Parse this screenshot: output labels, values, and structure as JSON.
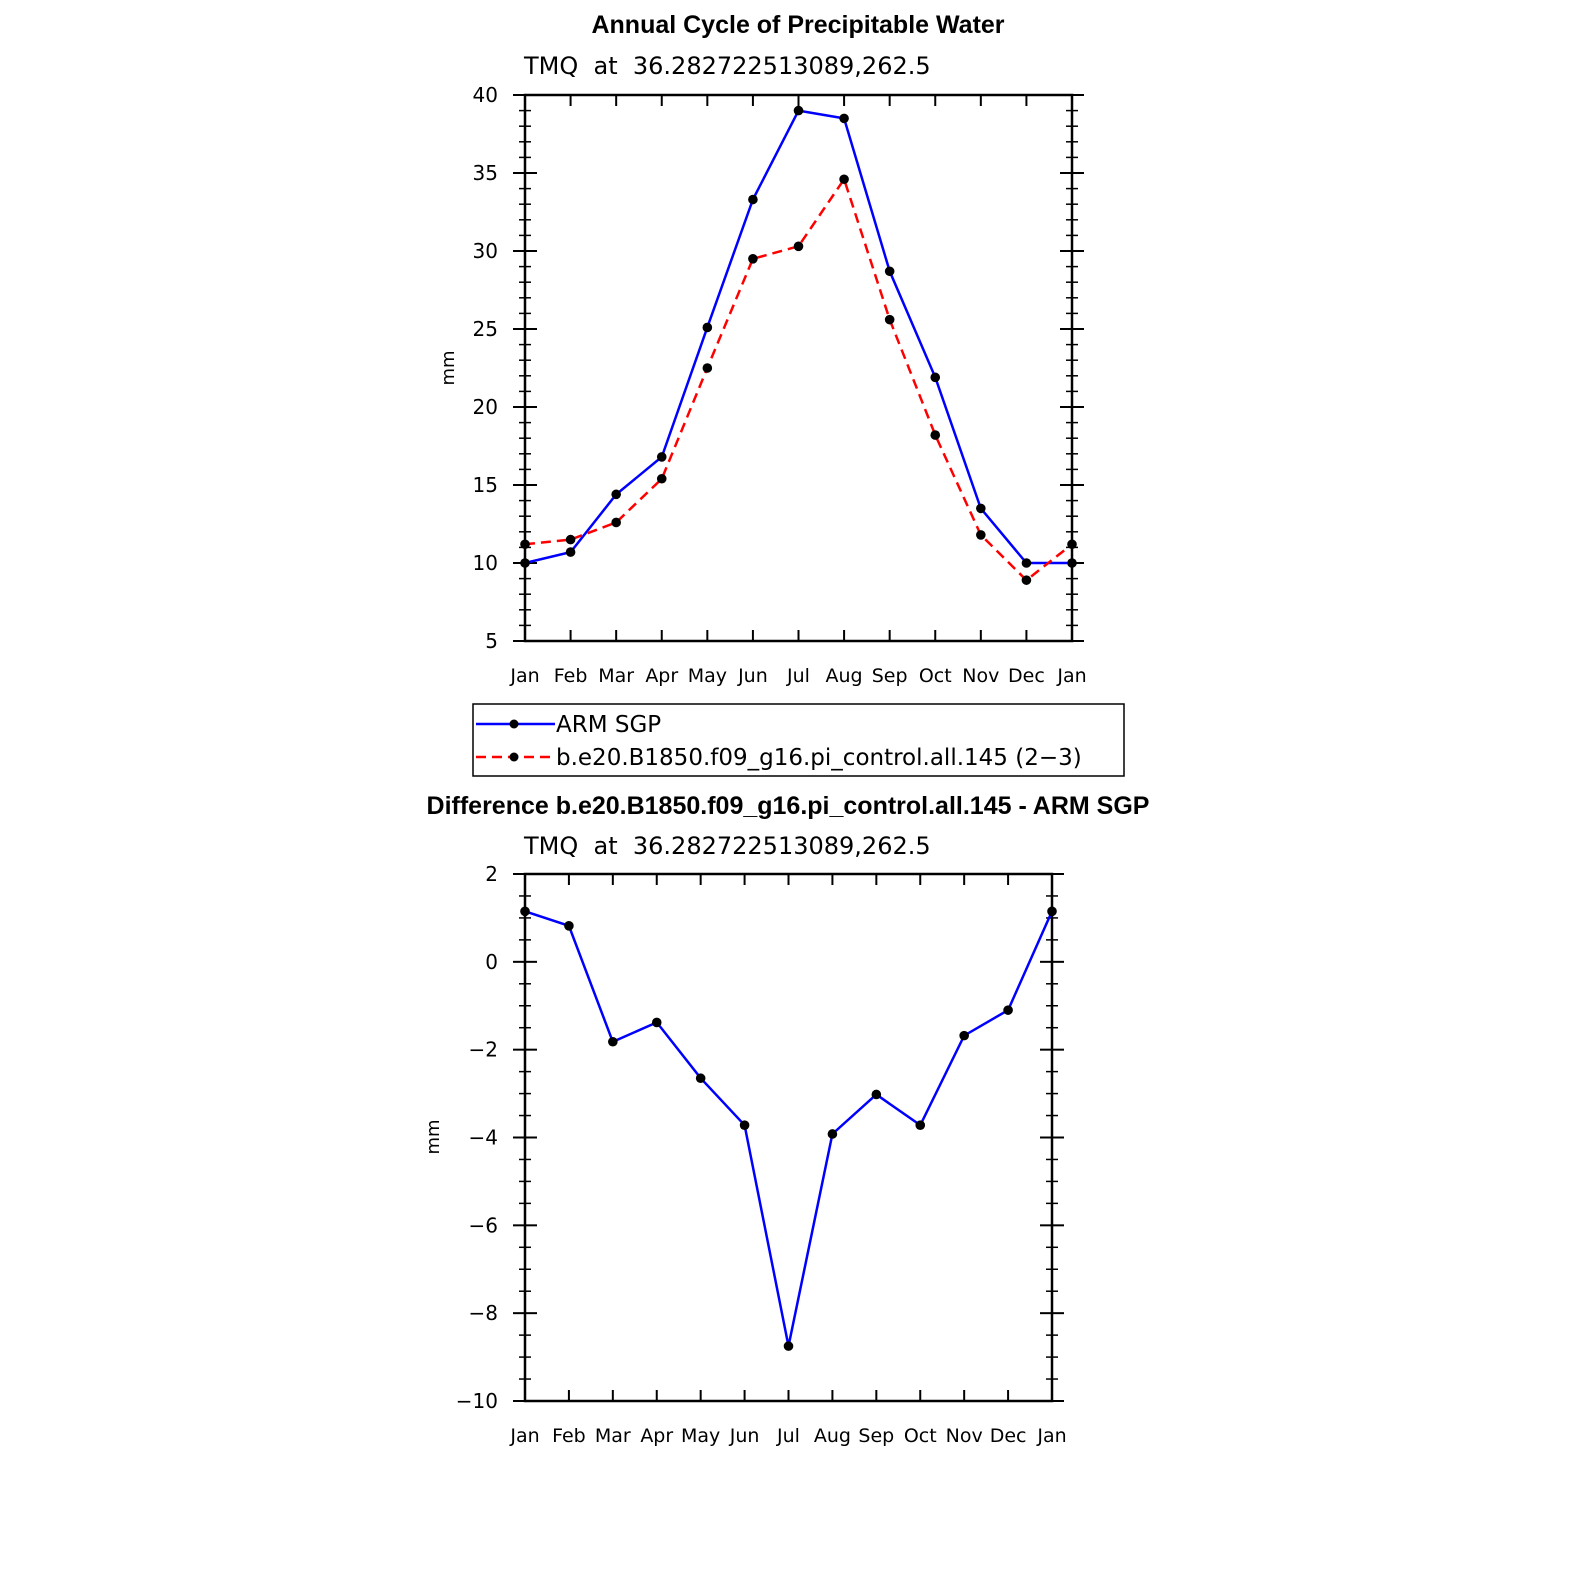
{
  "chart_data": [
    {
      "type": "line",
      "title": "Annual Cycle of Precipitable Water",
      "subtitle": "TMQ  at  36.282722513089,262.5",
      "xlabel": "",
      "ylabel": "mm",
      "categories": [
        "Jan",
        "Feb",
        "Mar",
        "Apr",
        "May",
        "Jun",
        "Jul",
        "Aug",
        "Sep",
        "Oct",
        "Nov",
        "Dec",
        "Jan"
      ],
      "ylim": [
        5,
        40
      ],
      "yticks": [
        5,
        10,
        15,
        20,
        25,
        30,
        35,
        40
      ],
      "ytick_labels": [
        "5",
        "10",
        "15",
        "20",
        "25",
        "30",
        "35",
        "40"
      ],
      "series": [
        {
          "name": "ARM SGP",
          "color": "#0000ff",
          "dash": "solid",
          "values": [
            10.0,
            10.7,
            14.4,
            16.8,
            25.1,
            33.3,
            39.0,
            38.5,
            28.7,
            21.9,
            13.5,
            10.0,
            10.0
          ]
        },
        {
          "name": "b.e20.B1850.f09_g16.pi_control.all.145 (2−3)",
          "color": "#ff0000",
          "dash": "dashed",
          "values": [
            11.2,
            11.5,
            12.6,
            15.4,
            22.5,
            29.5,
            30.3,
            34.6,
            25.6,
            18.2,
            11.8,
            8.9,
            11.2
          ]
        }
      ],
      "legend": {
        "position": "bottom",
        "entries": [
          "ARM SGP",
          "b.e20.B1850.f09_g16.pi_control.all.145 (2−3)"
        ]
      }
    },
    {
      "type": "line",
      "title": "Difference b.e20.B1850.f09_g16.pi_control.all.145 - ARM SGP",
      "subtitle": "TMQ  at  36.282722513089,262.5",
      "xlabel": "",
      "ylabel": "mm",
      "categories": [
        "Jan",
        "Feb",
        "Mar",
        "Apr",
        "May",
        "Jun",
        "Jul",
        "Aug",
        "Sep",
        "Oct",
        "Nov",
        "Dec",
        "Jan"
      ],
      "ylim": [
        -10,
        2
      ],
      "yticks": [
        -10,
        -8,
        -6,
        -4,
        -2,
        0,
        2
      ],
      "ytick_labels": [
        "−10",
        "−8",
        "−6",
        "−4",
        "−2",
        "0",
        "2"
      ],
      "series": [
        {
          "name": "Difference",
          "color": "#0000ff",
          "dash": "solid",
          "values": [
            1.15,
            0.82,
            -1.82,
            -1.38,
            -2.65,
            -3.72,
            -8.75,
            -3.92,
            -3.02,
            -3.72,
            -1.68,
            -1.1,
            1.15
          ]
        }
      ]
    }
  ]
}
